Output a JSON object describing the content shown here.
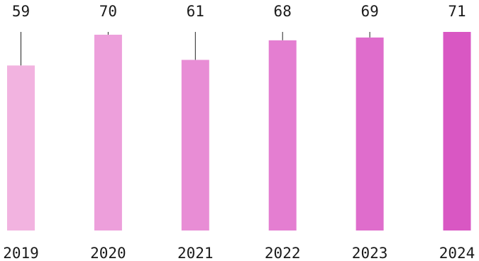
{
  "chart_data": {
    "type": "bar",
    "title": "",
    "xlabel": "",
    "ylabel": "",
    "categories": [
      "2019",
      "2020",
      "2021",
      "2022",
      "2023",
      "2024"
    ],
    "values": [
      59,
      70,
      61,
      68,
      69,
      71
    ],
    "value_labels": [
      "59",
      "70",
      "61",
      "68",
      "69",
      "71"
    ],
    "bar_colors": [
      "#f2b3e0",
      "#ed9fdb",
      "#e88dd5",
      "#e47ed1",
      "#df6dcc",
      "#d957c3"
    ],
    "ylim": [
      0,
      71
    ],
    "grid": false,
    "legend": "none"
  }
}
